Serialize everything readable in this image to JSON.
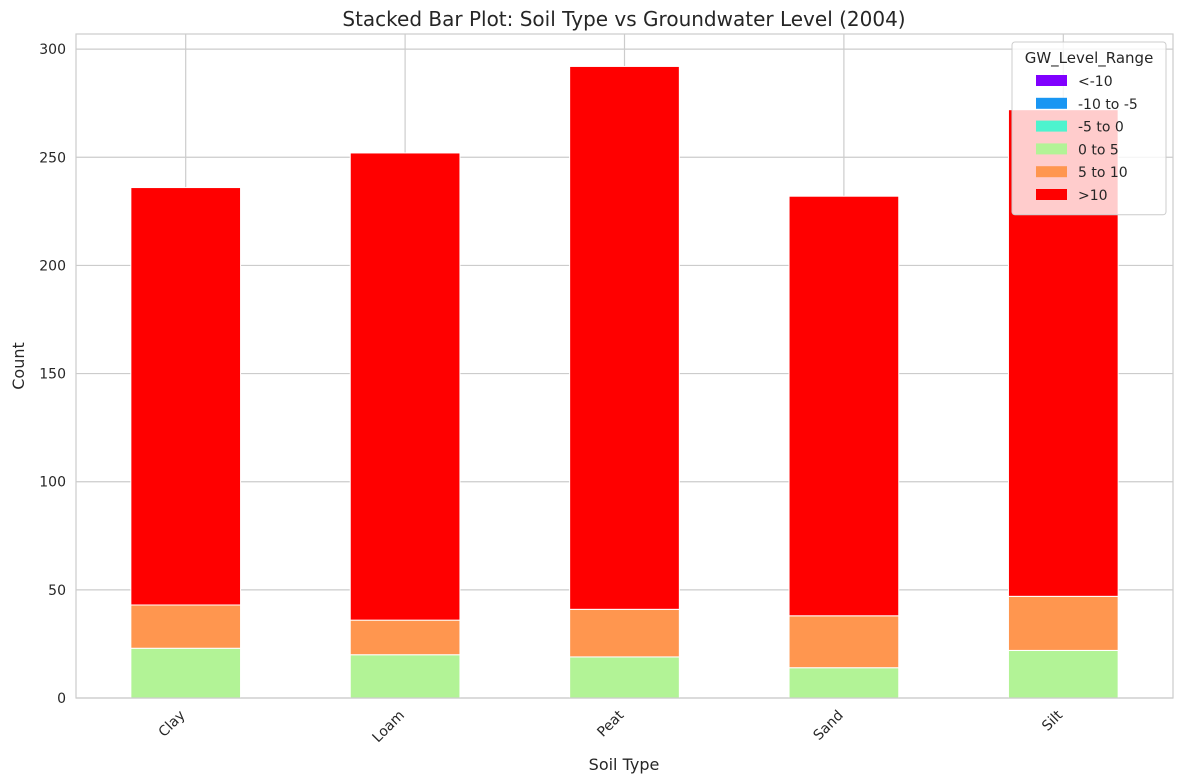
{
  "chart_data": {
    "type": "bar",
    "stacked": true,
    "title": "Stacked Bar Plot: Soil Type vs Groundwater Level (2004)",
    "xlabel": "Soil Type",
    "ylabel": "Count",
    "ylim": [
      0,
      307
    ],
    "yticks": [
      0,
      50,
      100,
      150,
      200,
      250,
      300
    ],
    "categories": [
      "Clay",
      "Loam",
      "Peat",
      "Sand",
      "Silt"
    ],
    "grid": true,
    "legend": {
      "title": "GW_Level_Range",
      "placement": "top-right"
    },
    "series": [
      {
        "name": "<-10",
        "color": "#8000ff",
        "values": [
          0,
          0,
          0,
          0,
          0
        ]
      },
      {
        "name": "-10 to -5",
        "color": "#1996f3",
        "values": [
          0,
          0,
          0,
          0,
          0
        ]
      },
      {
        "name": "-5 to 0",
        "color": "#4df3ce",
        "values": [
          0,
          0,
          0,
          0,
          0
        ]
      },
      {
        "name": "0 to 5",
        "color": "#b2f396",
        "values": [
          23,
          20,
          19,
          14,
          22
        ]
      },
      {
        "name": "5 to 10",
        "color": "#ff964f",
        "values": [
          20,
          16,
          22,
          24,
          25
        ]
      },
      {
        "name": ">10",
        "color": "#ff0000",
        "values": [
          193,
          216,
          251,
          194,
          225
        ]
      }
    ]
  }
}
